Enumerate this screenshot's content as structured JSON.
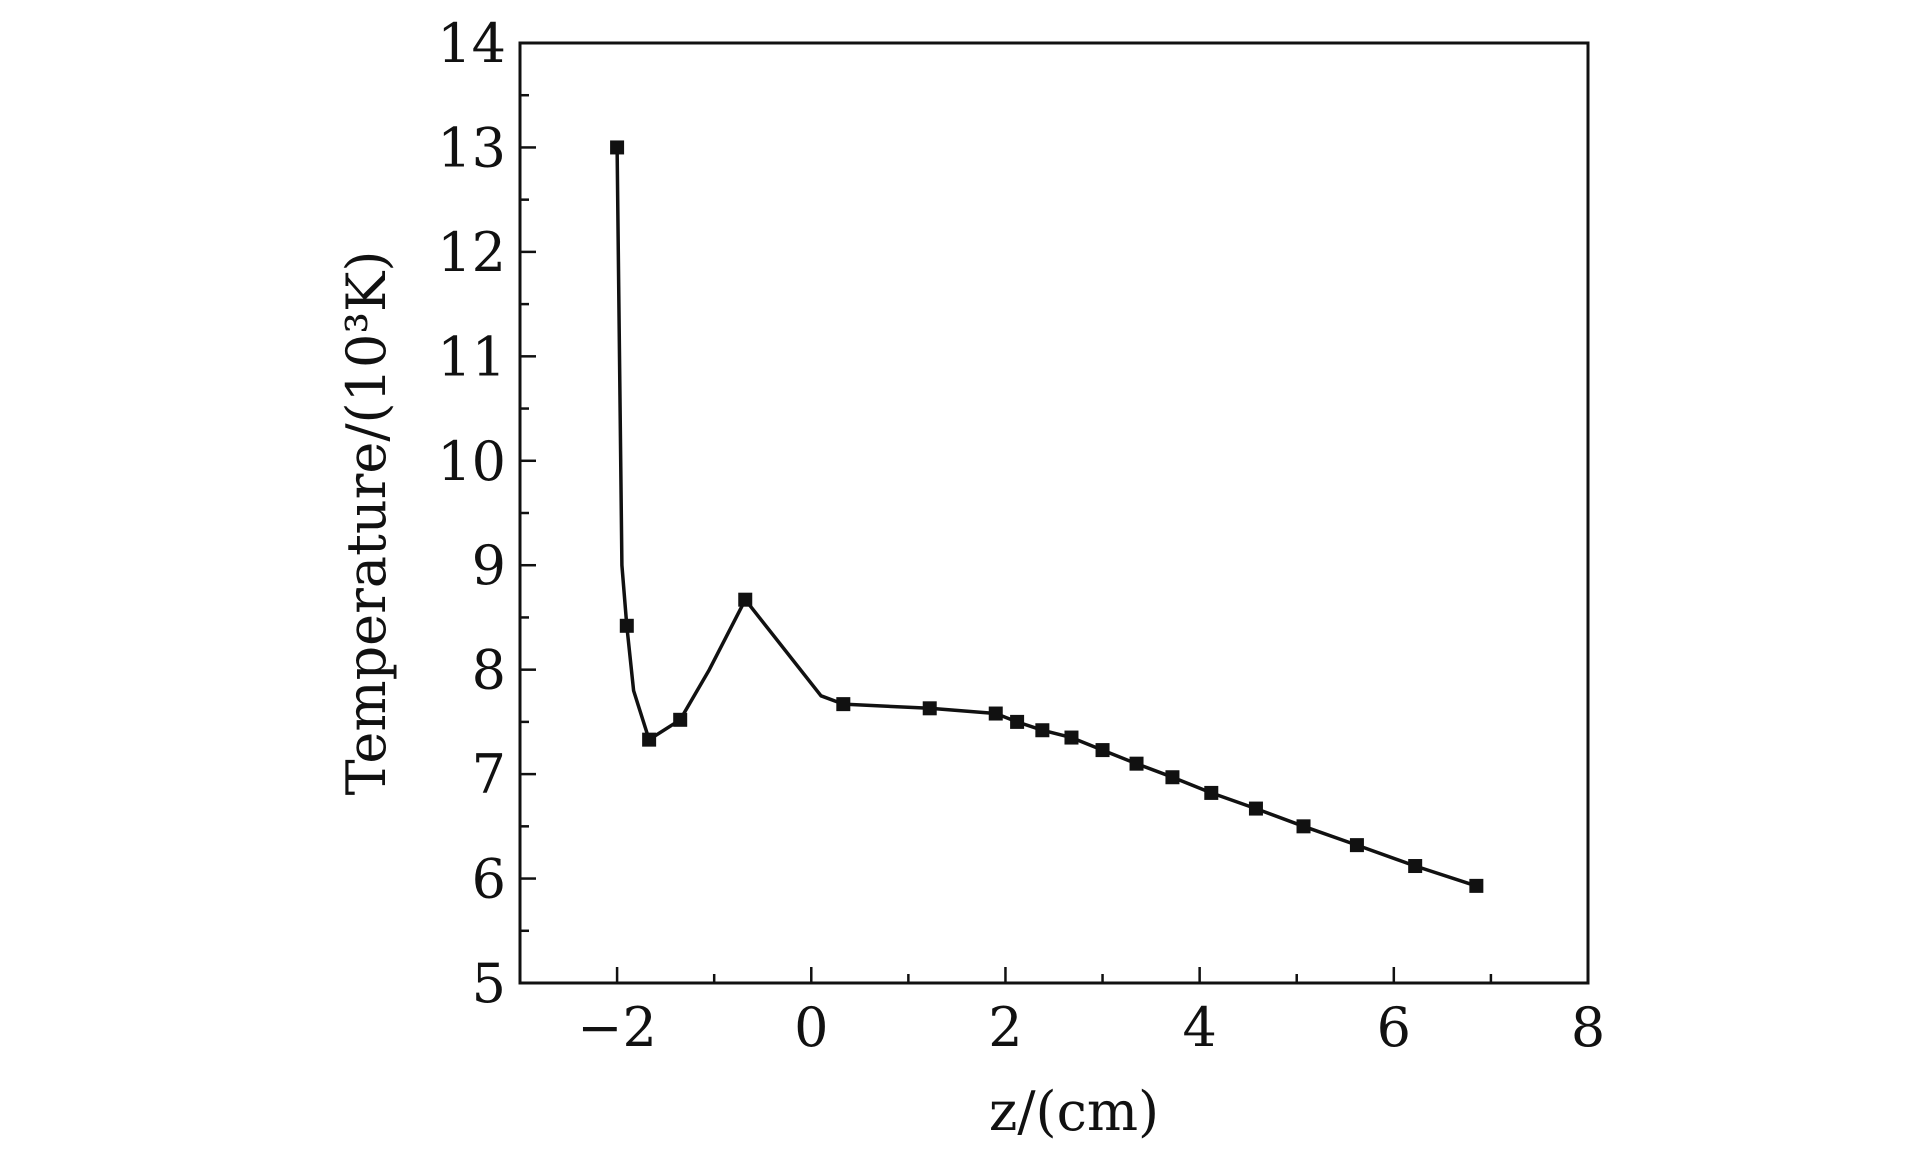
{
  "chart_data": {
    "type": "line",
    "xlabel": "z/(cm)",
    "ylabel": "Temperature/(10³K)",
    "xlim": [
      -3,
      8
    ],
    "ylim": [
      5,
      14
    ],
    "x_ticks": [
      -2,
      0,
      2,
      4,
      6,
      8
    ],
    "x_tick_labels": [
      "−2",
      "0",
      "2",
      "4",
      "6",
      "8"
    ],
    "y_ticks": [
      5,
      6,
      7,
      8,
      9,
      10,
      11,
      12,
      13,
      14
    ],
    "y_tick_labels": [
      "5",
      "6",
      "7",
      "8",
      "9",
      "10",
      "11",
      "12",
      "13",
      "14"
    ],
    "grid": false,
    "series": [
      {
        "marker": "square",
        "color": "#111111",
        "points": [
          {
            "x": -2.0,
            "y": 13.0
          },
          {
            "x": -1.9,
            "y": 8.42
          },
          {
            "x": -1.67,
            "y": 7.33
          },
          {
            "x": -1.35,
            "y": 7.52
          },
          {
            "x": -0.68,
            "y": 8.67
          },
          {
            "x": 0.33,
            "y": 7.67
          },
          {
            "x": 1.22,
            "y": 7.63
          },
          {
            "x": 1.9,
            "y": 7.58
          },
          {
            "x": 2.12,
            "y": 7.5
          },
          {
            "x": 2.38,
            "y": 7.42
          },
          {
            "x": 2.68,
            "y": 7.35
          },
          {
            "x": 3.0,
            "y": 7.23
          },
          {
            "x": 3.35,
            "y": 7.1
          },
          {
            "x": 3.72,
            "y": 6.97
          },
          {
            "x": 4.12,
            "y": 6.82
          },
          {
            "x": 4.58,
            "y": 6.67
          },
          {
            "x": 5.07,
            "y": 6.5
          },
          {
            "x": 5.62,
            "y": 6.32
          },
          {
            "x": 6.22,
            "y": 6.12
          },
          {
            "x": 6.85,
            "y": 5.93
          }
        ],
        "curve_points": [
          {
            "x": -2.0,
            "y": 13.0
          },
          {
            "x": -1.95,
            "y": 9.0
          },
          {
            "x": -1.9,
            "y": 8.42
          },
          {
            "x": -1.83,
            "y": 7.8
          },
          {
            "x": -1.67,
            "y": 7.33
          },
          {
            "x": -1.35,
            "y": 7.52
          },
          {
            "x": -1.05,
            "y": 8.0
          },
          {
            "x": -0.68,
            "y": 8.67
          },
          {
            "x": 0.1,
            "y": 7.75
          },
          {
            "x": 0.33,
            "y": 7.67
          },
          {
            "x": 1.22,
            "y": 7.63
          },
          {
            "x": 1.9,
            "y": 7.58
          },
          {
            "x": 2.12,
            "y": 7.5
          },
          {
            "x": 2.38,
            "y": 7.42
          },
          {
            "x": 2.68,
            "y": 7.35
          },
          {
            "x": 3.0,
            "y": 7.23
          },
          {
            "x": 3.35,
            "y": 7.1
          },
          {
            "x": 3.72,
            "y": 6.97
          },
          {
            "x": 4.12,
            "y": 6.82
          },
          {
            "x": 4.58,
            "y": 6.67
          },
          {
            "x": 5.07,
            "y": 6.5
          },
          {
            "x": 5.62,
            "y": 6.32
          },
          {
            "x": 6.22,
            "y": 6.12
          },
          {
            "x": 6.85,
            "y": 5.93
          }
        ]
      }
    ]
  }
}
